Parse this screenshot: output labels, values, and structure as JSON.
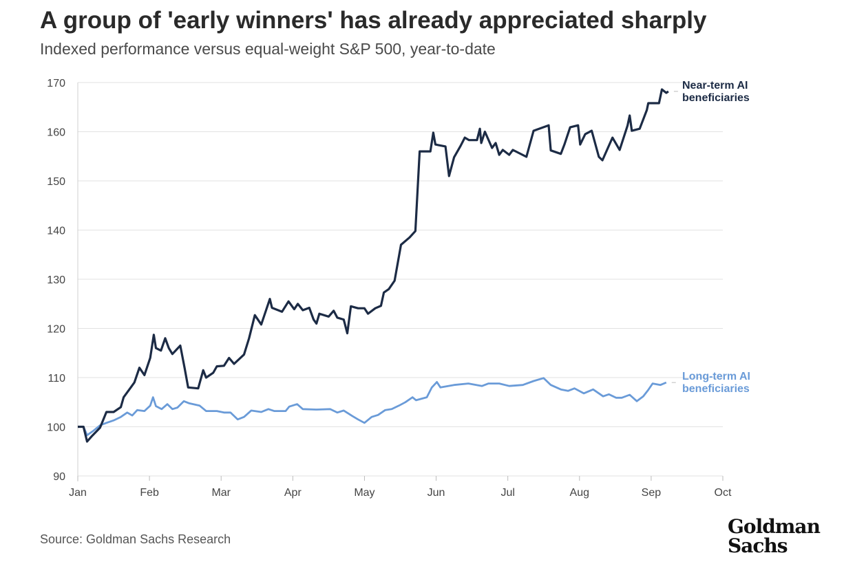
{
  "chart_data": {
    "type": "line",
    "title": "A group of 'early winners' has already appreciated sharply",
    "subtitle": "Indexed performance versus equal-weight S&P 500, year-to-date",
    "xlabel": "",
    "ylabel": "",
    "x_unit": "months since Jan 1 (0 = Jan, 9 = Oct)",
    "xlim": [
      0,
      9
    ],
    "ylim": [
      90,
      170
    ],
    "yticks": [
      90,
      100,
      110,
      120,
      130,
      140,
      150,
      160,
      170
    ],
    "xtick_labels": [
      "Jan",
      "Feb",
      "Mar",
      "Apr",
      "May",
      "Jun",
      "Jul",
      "Aug",
      "Sep",
      "Oct"
    ],
    "grid": true,
    "legend": "direct labels at right end of lines",
    "series": [
      {
        "name": "Near-term AI beneficiaries",
        "label_lines": [
          "Near-term AI",
          "beneficiaries"
        ],
        "color": "#1c2b45",
        "x": [
          0,
          0.08,
          0.13,
          0.19,
          0.31,
          0.4,
          0.5,
          0.6,
          0.64,
          0.74,
          0.79,
          0.86,
          0.93,
          1.01,
          1.06,
          1.09,
          1.16,
          1.22,
          1.27,
          1.32,
          1.43,
          1.49,
          1.54,
          1.68,
          1.75,
          1.79,
          1.89,
          1.94,
          2.04,
          2.11,
          2.18,
          2.32,
          2.39,
          2.47,
          2.56,
          2.68,
          2.71,
          2.85,
          2.94,
          3.02,
          3.07,
          3.14,
          3.23,
          3.29,
          3.33,
          3.37,
          3.5,
          3.57,
          3.62,
          3.71,
          3.76,
          3.81,
          3.91,
          4.0,
          4.05,
          4.15,
          4.23,
          4.27,
          4.34,
          4.42,
          4.51,
          4.63,
          4.71,
          4.77,
          4.92,
          4.96,
          4.99,
          5.13,
          5.18,
          5.25,
          5.34,
          5.4,
          5.46,
          5.57,
          5.61,
          5.63,
          5.68,
          5.78,
          5.83,
          5.88,
          5.93,
          6.02,
          6.07,
          6.26,
          6.36,
          6.57,
          6.6,
          6.74,
          6.79,
          6.87,
          6.98,
          7.01,
          7.08,
          7.17,
          7.27,
          7.32,
          7.46,
          7.56,
          7.67,
          7.7,
          7.73,
          7.84,
          7.94,
          7.96,
          8.11,
          8.15,
          8.21,
          8.24
        ],
        "y": [
          100,
          100,
          97,
          98,
          99.8,
          103,
          103,
          104,
          106,
          108,
          109,
          112,
          110.5,
          114,
          118.7,
          116,
          115.5,
          118,
          116,
          114.8,
          116.5,
          112,
          108,
          107.8,
          111.5,
          110,
          111,
          112.3,
          112.4,
          114,
          112.8,
          114.7,
          118,
          122.7,
          120.8,
          126,
          124.2,
          123.4,
          125.5,
          123.9,
          125,
          123.7,
          124.2,
          121.8,
          121,
          123,
          122.4,
          123.6,
          122.2,
          121.8,
          119,
          124.5,
          124.1,
          124.1,
          123,
          124.1,
          124.6,
          127.3,
          128,
          129.7,
          137,
          138.5,
          139.8,
          156,
          156,
          159.8,
          157.4,
          157,
          151,
          154.8,
          157.1,
          158.8,
          158.3,
          158.3,
          160.6,
          157.7,
          160,
          156.7,
          157.7,
          155.3,
          156.3,
          155.3,
          156.3,
          154.9,
          160.2,
          161.3,
          156.2,
          155.5,
          157.4,
          160.9,
          161.3,
          157.4,
          159.5,
          160.2,
          154.9,
          154.2,
          158.8,
          156.3,
          161.2,
          163.3,
          160.2,
          160.6,
          164.4,
          165.8,
          165.8,
          168.6,
          167.9,
          168.2
        ]
      },
      {
        "name": "Long-term AI beneficiaries",
        "label_lines": [
          "Long-term AI",
          "beneficiaries"
        ],
        "color": "#6a9bd8",
        "x": [
          0,
          0.08,
          0.13,
          0.21,
          0.31,
          0.4,
          0.5,
          0.6,
          0.69,
          0.76,
          0.83,
          0.93,
          1.01,
          1.05,
          1.09,
          1.17,
          1.25,
          1.32,
          1.39,
          1.48,
          1.55,
          1.7,
          1.79,
          1.94,
          2.04,
          2.13,
          2.23,
          2.32,
          2.42,
          2.56,
          2.66,
          2.74,
          2.9,
          2.95,
          3.06,
          3.14,
          3.33,
          3.52,
          3.62,
          3.71,
          3.83,
          3.91,
          4.0,
          4.1,
          4.19,
          4.29,
          4.38,
          4.48,
          4.57,
          4.67,
          4.72,
          4.87,
          4.94,
          5.01,
          5.06,
          5.25,
          5.45,
          5.64,
          5.73,
          5.88,
          6.02,
          6.21,
          6.36,
          6.5,
          6.6,
          6.74,
          6.84,
          6.93,
          7.06,
          7.19,
          7.33,
          7.41,
          7.51,
          7.59,
          7.7,
          7.8,
          7.89,
          7.96,
          8.02,
          8.13,
          8.21
        ],
        "y": [
          100,
          100,
          98.3,
          99.1,
          100.3,
          100.8,
          101.3,
          102,
          102.9,
          102.3,
          103.4,
          103.2,
          104.3,
          106,
          104.2,
          103.6,
          104.6,
          103.6,
          103.9,
          105.2,
          104.8,
          104.3,
          103.2,
          103.2,
          102.9,
          102.9,
          101.5,
          102,
          103.3,
          103,
          103.6,
          103.2,
          103.2,
          104.1,
          104.6,
          103.6,
          103.5,
          103.6,
          102.9,
          103.3,
          102.2,
          101.5,
          100.8,
          102,
          102.4,
          103.4,
          103.6,
          104.3,
          105,
          106,
          105.4,
          106,
          108,
          109.1,
          108,
          108.5,
          108.8,
          108.3,
          108.8,
          108.8,
          108.3,
          108.5,
          109.3,
          109.9,
          108.5,
          107.6,
          107.3,
          107.8,
          106.8,
          107.6,
          106.2,
          106.6,
          105.9,
          105.9,
          106.5,
          105.2,
          106.2,
          107.5,
          108.8,
          108.5,
          109
        ]
      }
    ]
  },
  "source": "Source: Goldman Sachs Research",
  "logo": {
    "line1": "Goldman",
    "line2": "Sachs"
  }
}
